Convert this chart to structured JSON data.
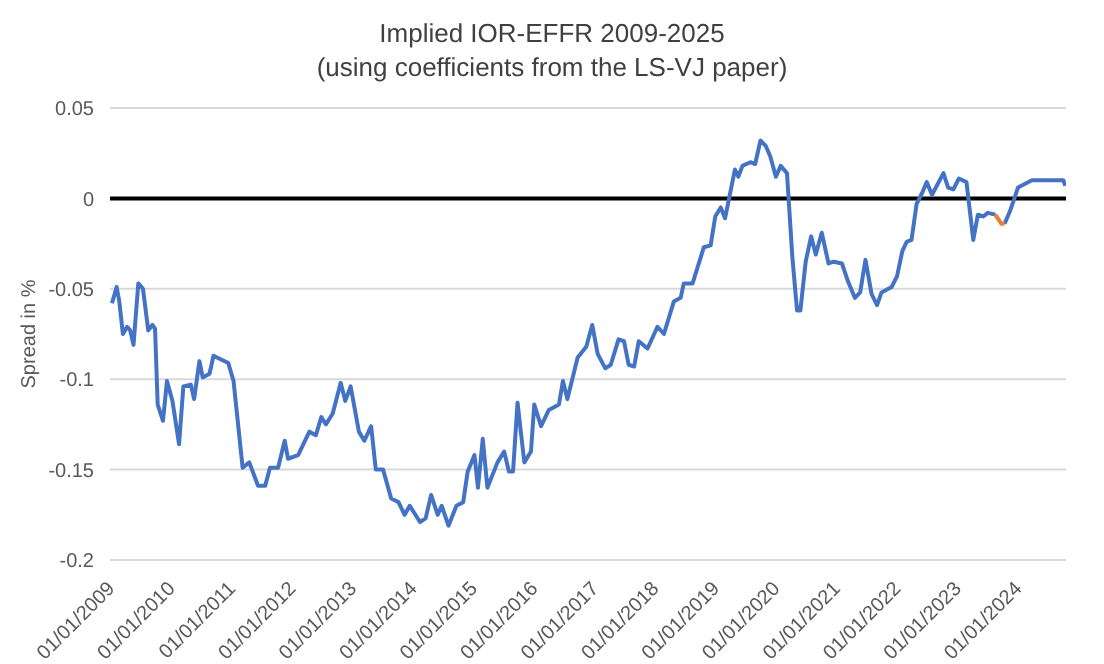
{
  "chart_data": {
    "type": "line",
    "title": "Implied IOR-EFFR 2009-2025",
    "subtitle": "(using coefficients from the LS-VJ paper)",
    "ylabel": "Spread in %",
    "x": [
      "2009-01-13",
      "2009-02-10",
      "2009-02-26",
      "2009-03-20",
      "2009-04-14",
      "2009-05-03",
      "2009-05-23",
      "2009-06-21",
      "2009-07-19",
      "2009-08-20",
      "2009-09-14",
      "2009-09-30",
      "2009-10-16",
      "2009-11-17",
      "2009-12-11",
      "2010-01-13",
      "2010-02-22",
      "2010-03-20",
      "2010-05-04",
      "2010-05-24",
      "2010-06-25",
      "2010-07-15",
      "2010-08-25",
      "2010-09-18",
      "2010-12-16",
      "2011-01-17",
      "2011-03-13",
      "2011-04-22",
      "2011-06-14",
      "2011-07-27",
      "2011-08-25",
      "2011-10-13",
      "2011-11-22",
      "2011-12-12",
      "2012-02-11",
      "2012-04-19",
      "2012-05-28",
      "2012-06-30",
      "2012-07-28",
      "2012-09-07",
      "2012-10-25",
      "2012-11-22",
      "2012-12-24",
      "2013-02-12",
      "2013-03-17",
      "2013-04-27",
      "2013-05-25",
      "2013-07-08",
      "2013-08-26",
      "2013-10-09",
      "2013-11-15",
      "2013-12-16",
      "2014-02-16",
      "2014-03-22",
      "2014-04-24",
      "2014-06-03",
      "2014-06-27",
      "2014-08-07",
      "2014-09-24",
      "2014-11-04",
      "2014-12-01",
      "2015-01-11",
      "2015-02-01",
      "2015-03-02",
      "2015-03-30",
      "2015-05-30",
      "2015-07-09",
      "2015-08-07",
      "2015-09-01",
      "2015-09-28",
      "2015-11-08",
      "2015-12-18",
      "2016-01-07",
      "2016-02-17",
      "2016-04-04",
      "2016-06-04",
      "2016-06-28",
      "2016-07-25",
      "2016-09-25",
      "2016-11-16",
      "2016-12-22",
      "2017-01-24",
      "2017-03-11",
      "2017-04-13",
      "2017-05-30",
      "2017-07-02",
      "2017-07-30",
      "2017-09-01",
      "2017-09-29",
      "2017-11-21",
      "2018-01-20",
      "2018-02-28",
      "2018-04-29",
      "2018-06-09",
      "2018-06-28",
      "2018-08-20",
      "2018-10-27",
      "2018-12-07",
      "2019-01-04",
      "2019-02-06",
      "2019-03-04",
      "2019-05-03",
      "2019-05-23",
      "2019-06-17",
      "2019-08-04",
      "2019-09-02",
      "2019-10-04",
      "2019-11-05",
      "2019-12-03",
      "2020-01-05",
      "2020-02-03",
      "2020-03-12",
      "2020-04-14",
      "2020-05-12",
      "2020-06-01",
      "2020-07-03",
      "2020-08-05",
      "2020-09-02",
      "2020-10-08",
      "2020-11-18",
      "2020-12-19",
      "2021-02-07",
      "2021-03-16",
      "2021-04-26",
      "2021-05-28",
      "2021-06-29",
      "2021-08-05",
      "2021-09-07",
      "2021-10-04",
      "2021-12-04",
      "2022-01-06",
      "2022-02-07",
      "2022-03-05",
      "2022-04-03",
      "2022-05-04",
      "2022-06-06",
      "2022-07-04",
      "2022-08-05",
      "2022-10-13",
      "2022-11-10",
      "2022-12-12",
      "2023-01-14",
      "2023-03-01",
      "2023-04-11",
      "2023-05-09",
      "2023-06-10",
      "2023-07-08",
      "2023-08-22",
      "2023-09-27",
      "2023-10-17",
      "2023-11-19",
      "2024-01-06",
      "2024-03-30",
      "2024-10-06",
      "2024-10-18"
    ],
    "series": [
      {
        "color": "#4472c4",
        "values": [
          -0.058,
          -0.049,
          -0.057,
          -0.075,
          -0.071,
          -0.073,
          -0.081,
          -0.047,
          -0.05,
          -0.073,
          -0.07,
          -0.072,
          -0.114,
          -0.123,
          -0.101,
          -0.112,
          -0.136,
          -0.104,
          -0.103,
          -0.111,
          -0.09,
          -0.099,
          -0.097,
          -0.087,
          -0.091,
          -0.101,
          -0.149,
          -0.146,
          -0.159,
          -0.159,
          -0.149,
          -0.149,
          -0.134,
          -0.144,
          -0.142,
          -0.129,
          -0.131,
          -0.121,
          -0.125,
          -0.119,
          -0.102,
          -0.112,
          -0.104,
          -0.129,
          -0.134,
          -0.126,
          -0.15,
          -0.15,
          -0.166,
          -0.168,
          -0.175,
          -0.17,
          -0.179,
          -0.177,
          -0.164,
          -0.175,
          -0.17,
          -0.181,
          -0.17,
          -0.168,
          -0.151,
          -0.142,
          -0.16,
          -0.133,
          -0.16,
          -0.146,
          -0.14,
          -0.151,
          -0.151,
          -0.113,
          -0.146,
          -0.14,
          -0.114,
          -0.126,
          -0.117,
          -0.114,
          -0.101,
          -0.111,
          -0.088,
          -0.082,
          -0.07,
          -0.086,
          -0.094,
          -0.092,
          -0.078,
          -0.079,
          -0.092,
          -0.093,
          -0.079,
          -0.083,
          -0.071,
          -0.075,
          -0.057,
          -0.055,
          -0.047,
          -0.047,
          -0.027,
          -0.026,
          -0.01,
          -0.005,
          -0.011,
          0.016,
          0.012,
          0.018,
          0.02,
          0.019,
          0.032,
          0.029,
          0.023,
          0.012,
          0.018,
          0.014,
          -0.033,
          -0.062,
          -0.062,
          -0.035,
          -0.021,
          -0.031,
          -0.019,
          -0.036,
          -0.035,
          -0.036,
          -0.046,
          -0.055,
          -0.052,
          -0.034,
          -0.053,
          -0.059,
          -0.052,
          -0.049,
          -0.043,
          -0.029,
          -0.024,
          -0.023,
          -0.003,
          0.003,
          0.009,
          0.002,
          0.014,
          0.006,
          0.005,
          0.011,
          0.009,
          -0.023,
          -0.009,
          -0.01,
          -0.008,
          -0.009,
          null,
          -0.014,
          -0.007,
          0.006,
          0.01,
          0.01,
          0.007
        ]
      },
      {
        "color": "#ed7d31",
        "values": [
          null,
          null,
          null,
          null,
          null,
          null,
          null,
          null,
          null,
          null,
          null,
          null,
          null,
          null,
          null,
          null,
          null,
          null,
          null,
          null,
          null,
          null,
          null,
          null,
          null,
          null,
          null,
          null,
          null,
          null,
          null,
          null,
          null,
          null,
          null,
          null,
          null,
          null,
          null,
          null,
          null,
          null,
          null,
          null,
          null,
          null,
          null,
          null,
          null,
          null,
          null,
          null,
          null,
          null,
          null,
          null,
          null,
          null,
          null,
          null,
          null,
          null,
          null,
          null,
          null,
          null,
          null,
          null,
          null,
          null,
          null,
          null,
          null,
          null,
          null,
          null,
          null,
          null,
          null,
          null,
          null,
          null,
          null,
          null,
          null,
          null,
          null,
          null,
          null,
          null,
          null,
          null,
          null,
          null,
          null,
          null,
          null,
          null,
          null,
          null,
          null,
          null,
          null,
          null,
          null,
          null,
          null,
          null,
          null,
          null,
          null,
          null,
          null,
          null,
          null,
          null,
          null,
          null,
          null,
          null,
          null,
          null,
          null,
          null,
          null,
          null,
          null,
          null,
          null,
          null,
          null,
          null,
          null,
          null,
          null,
          null,
          null,
          null,
          null,
          null,
          null,
          null,
          null,
          null,
          null,
          null,
          null,
          -0.009,
          -0.014,
          -0.014,
          null,
          null,
          null,
          null,
          null
        ]
      }
    ],
    "xlim": [
      "2009-01-01",
      "2024-10-22"
    ],
    "xticks": [
      {
        "value": "2009-01-01",
        "label": "01/01/2009"
      },
      {
        "value": "2010-01-01",
        "label": "01/01/2010"
      },
      {
        "value": "2011-01-01",
        "label": "01/01/2011"
      },
      {
        "value": "2012-01-01",
        "label": "01/01/2012"
      },
      {
        "value": "2013-01-01",
        "label": "01/01/2013"
      },
      {
        "value": "2014-01-01",
        "label": "01/01/2014"
      },
      {
        "value": "2015-01-01",
        "label": "01/01/2015"
      },
      {
        "value": "2016-01-01",
        "label": "01/01/2016"
      },
      {
        "value": "2017-01-01",
        "label": "01/01/2017"
      },
      {
        "value": "2018-01-01",
        "label": "01/01/2018"
      },
      {
        "value": "2019-01-01",
        "label": "01/01/2019"
      },
      {
        "value": "2020-01-01",
        "label": "01/01/2020"
      },
      {
        "value": "2021-01-01",
        "label": "01/01/2021"
      },
      {
        "value": "2022-01-01",
        "label": "01/01/2022"
      },
      {
        "value": "2023-01-01",
        "label": "01/01/2023"
      },
      {
        "value": "2024-01-01",
        "label": "01/01/2024"
      }
    ],
    "ylim": [
      -0.2,
      0.05
    ],
    "yticks": [
      -0.2,
      -0.15,
      -0.1,
      -0.05,
      0,
      0.05
    ],
    "grid": "y",
    "ref_lines": [
      {
        "axis": "y",
        "value": 0,
        "color": "#000000"
      }
    ]
  }
}
